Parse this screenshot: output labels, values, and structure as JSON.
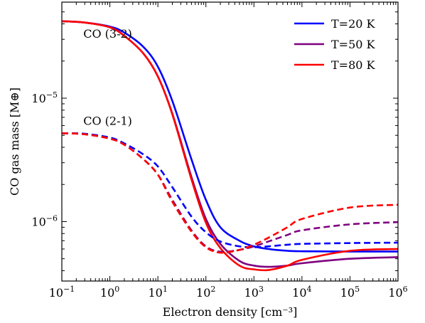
{
  "chart_data": {
    "type": "line",
    "xscale": "log",
    "yscale": "log",
    "xlim": [
      0.1,
      1000000
    ],
    "ylim": [
      3.3e-07,
      6e-05
    ],
    "xlabel": "Electron density [cm⁻³]",
    "ylabel": "CO gas mass [M⊕]",
    "x_ticks": [
      {
        "value": 0.1,
        "base": "10",
        "exp": "−1"
      },
      {
        "value": 1,
        "base": "10",
        "exp": "0"
      },
      {
        "value": 10,
        "base": "10",
        "exp": "1"
      },
      {
        "value": 100,
        "base": "10",
        "exp": "2"
      },
      {
        "value": 1000,
        "base": "10",
        "exp": "3"
      },
      {
        "value": 10000,
        "base": "10",
        "exp": "4"
      },
      {
        "value": 100000,
        "base": "10",
        "exp": "5"
      },
      {
        "value": 1000000,
        "base": "10",
        "exp": "6"
      }
    ],
    "y_ticks": [
      {
        "value": 1e-06,
        "base": "10",
        "exp": "−6"
      },
      {
        "value": 1e-05,
        "base": "10",
        "exp": "−5"
      }
    ],
    "grid": false,
    "legend_position": "top-right",
    "legend": [
      {
        "label": "T=20 K",
        "color": "#0000ff"
      },
      {
        "label": "T=50 K",
        "color": "#800080"
      },
      {
        "label": "T=80 K",
        "color": "#ff0000"
      }
    ],
    "annotations": [
      {
        "text": "CO (3-2)",
        "x": 0.28,
        "y": 3.3e-05
      },
      {
        "text": "CO (2-1)",
        "x": 0.28,
        "y": 6.5e-06
      }
    ],
    "x": [
      0.1,
      0.3,
      1,
      2,
      5,
      10,
      20,
      50,
      100,
      200,
      500,
      1000,
      2000,
      5000,
      10000,
      100000,
      1000000
    ],
    "series": [
      {
        "name": "T=20 K",
        "line": "CO (3-2)",
        "style": "solid",
        "color": "#0000ff",
        "values": [
          4.2e-05,
          4.1e-05,
          3.8e-05,
          3.4e-05,
          2.6e-05,
          1.8e-05,
          9.5e-06,
          3.2e-06,
          1.5e-06,
          9e-07,
          7e-07,
          6.3e-07,
          6e-07,
          5.8e-07,
          5.75e-07,
          5.72e-07,
          5.72e-07
        ]
      },
      {
        "name": "T=50 K",
        "line": "CO (3-2)",
        "style": "solid",
        "color": "#800080",
        "values": [
          4.2e-05,
          4.1e-05,
          3.75e-05,
          3.2e-05,
          2.3e-05,
          1.5e-05,
          7.5e-06,
          2.3e-06,
          1.05e-06,
          6.6e-07,
          4.8e-07,
          4.4e-07,
          4.3e-07,
          4.4e-07,
          4.6e-07,
          5e-07,
          5.15e-07
        ]
      },
      {
        "name": "T=80 K",
        "line": "CO (3-2)",
        "style": "solid",
        "color": "#ff0000",
        "values": [
          4.2e-05,
          4.1e-05,
          3.75e-05,
          3.2e-05,
          2.3e-05,
          1.5e-05,
          7.4e-06,
          2.2e-06,
          9.8e-07,
          6.1e-07,
          4.4e-07,
          4.1e-07,
          4.05e-07,
          4.4e-07,
          4.9e-07,
          5.8e-07,
          6e-07
        ]
      },
      {
        "name": "T=20 K",
        "line": "CO (2-1)",
        "style": "dashed",
        "color": "#0000ff",
        "values": [
          5.2e-06,
          5.15e-06,
          4.8e-06,
          4.3e-06,
          3.5e-06,
          2.8e-06,
          1.9e-06,
          1.1e-06,
          8.2e-07,
          6.9e-07,
          6.3e-07,
          6.2e-07,
          6.3e-07,
          6.5e-07,
          6.6e-07,
          6.7e-07,
          6.75e-07
        ]
      },
      {
        "name": "T=50 K",
        "line": "CO (2-1)",
        "style": "dashed",
        "color": "#800080",
        "values": [
          5.2e-06,
          5.1e-06,
          4.7e-06,
          4.2e-06,
          3.2e-06,
          2.4e-06,
          1.5e-06,
          8.5e-07,
          6.3e-07,
          5.7e-07,
          5.9e-07,
          6.3e-07,
          6.9e-07,
          7.8e-07,
          8.5e-07,
          9.5e-07,
          9.9e-07
        ]
      },
      {
        "name": "T=80 K",
        "line": "CO (2-1)",
        "style": "dashed",
        "color": "#ff0000",
        "values": [
          5.2e-06,
          5.1e-06,
          4.7e-06,
          4.2e-06,
          3.2e-06,
          2.4e-06,
          1.45e-06,
          8.3e-07,
          6.2e-07,
          5.6e-07,
          5.9e-07,
          6.5e-07,
          7.4e-07,
          9e-07,
          1.05e-06,
          1.3e-06,
          1.37e-06
        ]
      }
    ]
  }
}
